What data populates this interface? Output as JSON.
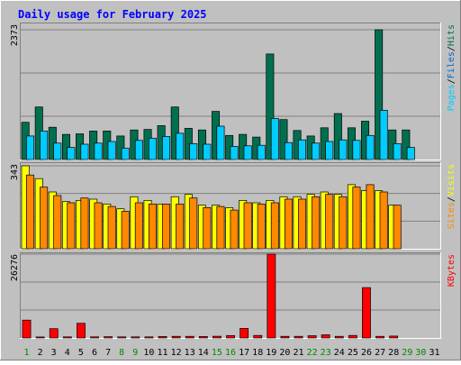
{
  "title": "Daily usage for February 2025",
  "colors": {
    "background": "#c0c0c0",
    "title": "#0000ff",
    "pages": "#00ccff",
    "files": "#0066cc",
    "hits": "#006f4f",
    "visits": "#ffff00",
    "sites": "#ff8800",
    "kbytes": "#ff0000",
    "weekend_day": "#008800",
    "weekday": "#000000"
  },
  "chart_data": [
    {
      "type": "bar",
      "name": "hits-files-pages",
      "y_max_label": "2373",
      "ylim": [
        0,
        2373
      ],
      "legend": [
        {
          "label": "Pages",
          "color": "#00ccff"
        },
        {
          "label": "/",
          "color": "#000000"
        },
        {
          "label": "Files",
          "color": "#0066cc"
        },
        {
          "label": "/",
          "color": "#000000"
        },
        {
          "label": "Hits",
          "color": "#006f4f"
        }
      ],
      "categories": [
        "1",
        "2",
        "3",
        "4",
        "5",
        "6",
        "7",
        "8",
        "9",
        "10",
        "11",
        "12",
        "13",
        "14",
        "15",
        "16",
        "17",
        "18",
        "19",
        "20",
        "21",
        "22",
        "23",
        "24",
        "25",
        "26",
        "27",
        "28",
        "29",
        "30",
        "31"
      ],
      "series": [
        {
          "name": "Hits",
          "values": [
            680,
            960,
            590,
            460,
            470,
            520,
            520,
            430,
            540,
            550,
            620,
            960,
            570,
            540,
            880,
            440,
            460,
            410,
            1930,
            730,
            530,
            430,
            580,
            840,
            580,
            700,
            2373,
            540,
            540,
            null,
            null
          ]
        },
        {
          "name": "Pages",
          "values": [
            430,
            520,
            300,
            220,
            280,
            300,
            330,
            210,
            350,
            390,
            420,
            480,
            290,
            280,
            610,
            240,
            250,
            260,
            750,
            310,
            360,
            300,
            330,
            360,
            350,
            440,
            900,
            290,
            220,
            null,
            null
          ]
        }
      ]
    },
    {
      "type": "bar",
      "name": "visits-sites",
      "y_max_label": "343",
      "ylim": [
        0,
        343
      ],
      "legend": [
        {
          "label": "Sites",
          "color": "#ff8800"
        },
        {
          "label": "/",
          "color": "#000000"
        },
        {
          "label": "Visits",
          "color": "#ffff00"
        }
      ],
      "categories": [
        "1",
        "2",
        "3",
        "4",
        "5",
        "6",
        "7",
        "8",
        "9",
        "10",
        "11",
        "12",
        "13",
        "14",
        "15",
        "16",
        "17",
        "18",
        "19",
        "20",
        "21",
        "22",
        "23",
        "24",
        "25",
        "26",
        "27",
        "28",
        "29",
        "30",
        "31"
      ],
      "series": [
        {
          "name": "Visits",
          "values": [
            343,
            290,
            235,
            195,
            200,
            205,
            185,
            165,
            215,
            200,
            185,
            215,
            225,
            180,
            180,
            170,
            200,
            190,
            200,
            215,
            215,
            225,
            235,
            225,
            265,
            240,
            240,
            180,
            null,
            null,
            null
          ]
        },
        {
          "name": "Sites",
          "values": [
            305,
            255,
            220,
            190,
            210,
            190,
            175,
            155,
            190,
            185,
            185,
            185,
            210,
            170,
            175,
            160,
            190,
            185,
            190,
            205,
            205,
            215,
            225,
            215,
            255,
            265,
            235,
            180,
            null,
            null,
            null
          ]
        }
      ]
    },
    {
      "type": "bar",
      "name": "kbytes",
      "y_max_label": "26276",
      "ylim": [
        0,
        26276
      ],
      "legend": [
        {
          "label": "KBytes",
          "color": "#ff0000"
        }
      ],
      "categories": [
        "1",
        "2",
        "3",
        "4",
        "5",
        "6",
        "7",
        "8",
        "9",
        "10",
        "11",
        "12",
        "13",
        "14",
        "15",
        "16",
        "17",
        "18",
        "19",
        "20",
        "21",
        "22",
        "23",
        "24",
        "25",
        "26",
        "27",
        "28",
        "29",
        "30",
        "31"
      ],
      "series": [
        {
          "name": "KBytes",
          "values": [
            5600,
            300,
            2900,
            350,
            4600,
            350,
            400,
            350,
            350,
            350,
            450,
            500,
            500,
            450,
            550,
            750,
            3000,
            800,
            26276,
            500,
            500,
            700,
            1000,
            500,
            800,
            15800,
            500,
            600,
            null,
            null,
            null
          ]
        }
      ]
    }
  ],
  "day_labels": [
    {
      "label": "1",
      "weekend": true
    },
    {
      "label": "2",
      "weekend": false
    },
    {
      "label": "3",
      "weekend": false
    },
    {
      "label": "4",
      "weekend": false
    },
    {
      "label": "5",
      "weekend": false
    },
    {
      "label": "6",
      "weekend": false
    },
    {
      "label": "7",
      "weekend": false
    },
    {
      "label": "8",
      "weekend": true
    },
    {
      "label": "9",
      "weekend": true
    },
    {
      "label": "10",
      "weekend": false
    },
    {
      "label": "11",
      "weekend": false
    },
    {
      "label": "12",
      "weekend": false
    },
    {
      "label": "13",
      "weekend": false
    },
    {
      "label": "14",
      "weekend": false
    },
    {
      "label": "15",
      "weekend": true
    },
    {
      "label": "16",
      "weekend": true
    },
    {
      "label": "17",
      "weekend": false
    },
    {
      "label": "18",
      "weekend": false
    },
    {
      "label": "19",
      "weekend": false
    },
    {
      "label": "20",
      "weekend": false
    },
    {
      "label": "21",
      "weekend": false
    },
    {
      "label": "22",
      "weekend": true
    },
    {
      "label": "23",
      "weekend": true
    },
    {
      "label": "24",
      "weekend": false
    },
    {
      "label": "25",
      "weekend": false
    },
    {
      "label": "26",
      "weekend": false
    },
    {
      "label": "27",
      "weekend": false
    },
    {
      "label": "28",
      "weekend": false
    },
    {
      "label": "29",
      "weekend": true
    },
    {
      "label": "30",
      "weekend": true
    },
    {
      "label": "31",
      "weekend": false
    }
  ]
}
